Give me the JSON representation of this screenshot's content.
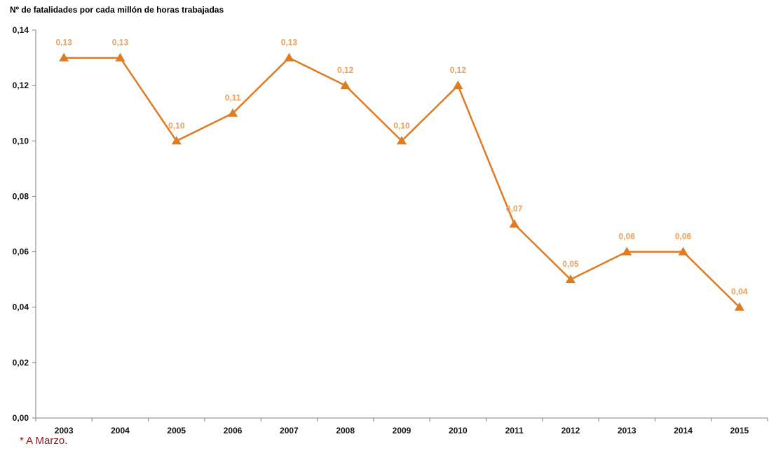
{
  "chart_data": {
    "type": "line",
    "ylabel": "Nº de fatalidades por cada millón de horas trabajadas",
    "xlabel": "",
    "categories": [
      "2003",
      "2004",
      "2005",
      "2006",
      "2007",
      "2008",
      "2009",
      "2010",
      "2011",
      "2012",
      "2013",
      "2014",
      "2015"
    ],
    "series": [
      {
        "values": [
          0.13,
          0.13,
          0.1,
          0.11,
          0.13,
          0.12,
          0.1,
          0.12,
          0.07,
          0.05,
          0.06,
          0.06,
          0.04
        ],
        "labels": [
          "0,13",
          "0,13",
          "0,10",
          "0,11",
          "0,13",
          "0,12",
          "0,10",
          "0,12",
          "0,07",
          "0,05",
          "0,06",
          "0,06",
          "0,04"
        ],
        "color": "#e07b22",
        "marker": "triangle"
      }
    ],
    "ylim": [
      0,
      0.14
    ],
    "yticks": [
      "0,00",
      "0,02",
      "0,04",
      "0,06",
      "0,08",
      "0,10",
      "0,12",
      "0,14"
    ],
    "grid": false,
    "legend": "none",
    "axis_color": "#808080",
    "label_color": "#f0a060"
  },
  "footnote": "* A Marzo.",
  "footnote_color": "#8b1a1a"
}
